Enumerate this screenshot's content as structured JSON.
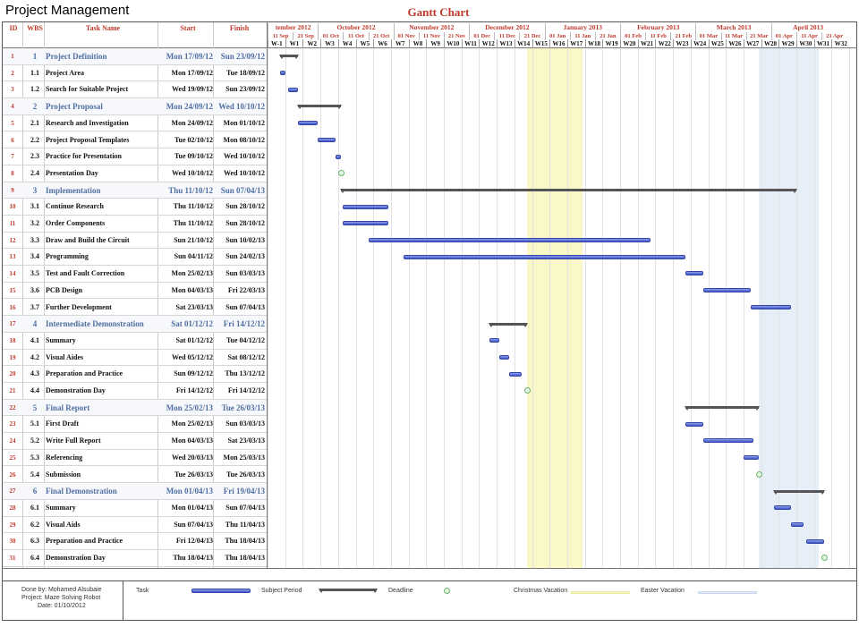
{
  "document": {
    "title": "Project Management",
    "chart_title": "Gantt Chart"
  },
  "columns": {
    "id": "ID",
    "wbs": "WBS",
    "name": "Task Name",
    "start": "Start",
    "finish": "Finish"
  },
  "months": [
    "tember 2012",
    "October 2012",
    "November 2012",
    "December 2012",
    "January 2013",
    "February 2013",
    "March 2013",
    "April 2013"
  ],
  "dates": [
    "11 Sep",
    "21 Sep",
    "01 Oct",
    "11 Oct",
    "21 Oct",
    "01 Nov",
    "11 Nov",
    "21 Nov",
    "01 Dec",
    "11 Dec",
    "21 Dec",
    "01 Jan",
    "11 Jan",
    "21 Jan",
    "01 Feb",
    "11 Feb",
    "21 Feb",
    "01 Mar",
    "11 Mar",
    "21 Mar",
    "01 Apr",
    "11 Apr",
    "21 Apr"
  ],
  "weeks": [
    "W-1",
    "W1",
    "W2",
    "W3",
    "W4",
    "W5",
    "W6",
    "W7",
    "W8",
    "W9",
    "W10",
    "W11",
    "W12",
    "W13",
    "W14",
    "W15",
    "W16",
    "W17",
    "W18",
    "W19",
    "W20",
    "W21",
    "W22",
    "W23",
    "W24",
    "W25",
    "W26",
    "W27",
    "W28",
    "W29",
    "W30",
    "W31",
    "W32"
  ],
  "tasks": [
    {
      "id": "1",
      "wbs": "1",
      "name": "Project Definition",
      "start": "Mon 17/09/12",
      "finish": "Sun 23/09/12",
      "kind": "summary",
      "s": -0.286,
      "e": 0.714
    },
    {
      "id": "2",
      "wbs": "1.1",
      "name": "Project Area",
      "start": "Mon 17/09/12",
      "finish": "Tue 18/09/12",
      "kind": "task",
      "s": -0.286,
      "e": 0.0
    },
    {
      "id": "3",
      "wbs": "1.2",
      "name": "Search for Suitable Project",
      "start": "Wed 19/09/12",
      "finish": "Sun 23/09/12",
      "kind": "task",
      "s": 0.143,
      "e": 0.714
    },
    {
      "id": "4",
      "wbs": "2",
      "name": "Project Proposal",
      "start": "Mon 24/09/12",
      "finish": "Wed 10/10/12",
      "kind": "summary",
      "s": 0.714,
      "e": 3.143
    },
    {
      "id": "5",
      "wbs": "2.1",
      "name": "Research and Investigation",
      "start": "Mon 24/09/12",
      "finish": "Mon 01/10/12",
      "kind": "task",
      "s": 0.714,
      "e": 1.857
    },
    {
      "id": "6",
      "wbs": "2.2",
      "name": "Project Proposal Templates",
      "start": "Tue 02/10/12",
      "finish": "Mon 08/10/12",
      "kind": "task",
      "s": 1.857,
      "e": 2.857
    },
    {
      "id": "7",
      "wbs": "2.3",
      "name": "Practice for Presentation",
      "start": "Tue 09/10/12",
      "finish": "Wed 10/10/12",
      "kind": "task",
      "s": 2.857,
      "e": 3.143
    },
    {
      "id": "8",
      "wbs": "2.4",
      "name": "Presentation Day",
      "start": "Wed 10/10/12",
      "finish": "Wed 10/10/12",
      "kind": "milestone",
      "s": 3.143,
      "e": 3.143
    },
    {
      "id": "9",
      "wbs": "3",
      "name": "Implementation",
      "start": "Thu 11/10/12",
      "finish": "Sun 07/04/13",
      "kind": "summary",
      "s": 3.143,
      "e": 29.0
    },
    {
      "id": "10",
      "wbs": "3.1",
      "name": "Continue Research",
      "start": "Thu 11/10/12",
      "finish": "Sun 28/10/12",
      "kind": "task",
      "s": 3.286,
      "e": 5.857
    },
    {
      "id": "11",
      "wbs": "3.2",
      "name": "Order Components",
      "start": "Thu 11/10/12",
      "finish": "Sun 28/10/12",
      "kind": "task",
      "s": 3.286,
      "e": 5.857
    },
    {
      "id": "12",
      "wbs": "3.3",
      "name": "Draw and Build the Circuit",
      "start": "Sun 21/10/12",
      "finish": "Sun 10/02/13",
      "kind": "task",
      "s": 4.714,
      "e": 20.714
    },
    {
      "id": "13",
      "wbs": "3.4",
      "name": "Programming",
      "start": "Sun 04/11/12",
      "finish": "Sun 24/02/13",
      "kind": "task",
      "s": 6.714,
      "e": 22.714
    },
    {
      "id": "14",
      "wbs": "3.5",
      "name": "Test and Fault Correction",
      "start": "Mon 25/02/13",
      "finish": "Sun 03/03/13",
      "kind": "task",
      "s": 22.714,
      "e": 23.714
    },
    {
      "id": "15",
      "wbs": "3.6",
      "name": "PCB Design",
      "start": "Mon 04/03/13",
      "finish": "Fri 22/03/13",
      "kind": "task",
      "s": 23.714,
      "e": 26.429
    },
    {
      "id": "16",
      "wbs": "3.7",
      "name": "Further Development",
      "start": "Sat 23/03/13",
      "finish": "Sun 07/04/13",
      "kind": "task",
      "s": 26.429,
      "e": 28.714
    },
    {
      "id": "17",
      "wbs": "4",
      "name": "Intermediate Demonstration",
      "start": "Sat 01/12/12",
      "finish": "Fri 14/12/12",
      "kind": "summary",
      "s": 11.571,
      "e": 13.714
    },
    {
      "id": "18",
      "wbs": "4.1",
      "name": "Summary",
      "start": "Sat 01/12/12",
      "finish": "Tue 04/12/12",
      "kind": "task",
      "s": 11.571,
      "e": 12.143
    },
    {
      "id": "19",
      "wbs": "4.2",
      "name": "Visual Aides",
      "start": "Wed 05/12/12",
      "finish": "Sat 08/12/12",
      "kind": "task",
      "s": 12.143,
      "e": 12.714
    },
    {
      "id": "20",
      "wbs": "4.3",
      "name": "Preparation and Practice",
      "start": "Sun 09/12/12",
      "finish": "Thu 13/12/12",
      "kind": "task",
      "s": 12.714,
      "e": 13.429
    },
    {
      "id": "21",
      "wbs": "4.4",
      "name": "Demonstration Day",
      "start": "Fri 14/12/12",
      "finish": "Fri 14/12/12",
      "kind": "milestone",
      "s": 13.714,
      "e": 13.714
    },
    {
      "id": "22",
      "wbs": "5",
      "name": "Final Report",
      "start": "Mon 25/02/13",
      "finish": "Tue 26/03/13",
      "kind": "summary",
      "s": 22.714,
      "e": 26.857
    },
    {
      "id": "23",
      "wbs": "5.1",
      "name": "First Draft",
      "start": "Mon 25/02/13",
      "finish": "Sun 03/03/13",
      "kind": "task",
      "s": 22.714,
      "e": 23.714
    },
    {
      "id": "24",
      "wbs": "5.2",
      "name": "Write Full Report",
      "start": "Mon 04/03/13",
      "finish": "Sat 23/03/13",
      "kind": "task",
      "s": 23.714,
      "e": 26.571
    },
    {
      "id": "25",
      "wbs": "5.3",
      "name": "Referencing",
      "start": "Wed 20/03/13",
      "finish": "Mon 25/03/13",
      "kind": "task",
      "s": 26.0,
      "e": 26.857
    },
    {
      "id": "26",
      "wbs": "5.4",
      "name": "Submission",
      "start": "Tue 26/03/13",
      "finish": "Tue 26/03/13",
      "kind": "milestone",
      "s": 26.857,
      "e": 26.857
    },
    {
      "id": "27",
      "wbs": "6",
      "name": "Final Demonstration",
      "start": "Mon 01/04/13",
      "finish": "Fri 19/04/13",
      "kind": "summary",
      "s": 27.714,
      "e": 30.571
    },
    {
      "id": "28",
      "wbs": "6.1",
      "name": "Summary",
      "start": "Mon 01/04/13",
      "finish": "Sun 07/04/13",
      "kind": "task",
      "s": 27.714,
      "e": 28.714
    },
    {
      "id": "29",
      "wbs": "6.2",
      "name": "Visual Aids",
      "start": "Sun 07/04/13",
      "finish": "Thu 11/04/13",
      "kind": "task",
      "s": 28.714,
      "e": 29.429
    },
    {
      "id": "30",
      "wbs": "6.3",
      "name": "Preparation and Practice",
      "start": "Fri 12/04/13",
      "finish": "Thu 18/04/13",
      "kind": "task",
      "s": 29.571,
      "e": 30.571
    },
    {
      "id": "31",
      "wbs": "6.4",
      "name": "Demonstration Day",
      "start": "Thu 18/04/13",
      "finish": "Thu 18/04/13",
      "kind": "milestone",
      "s": 30.571,
      "e": 30.571
    }
  ],
  "shading": [
    {
      "label": "Christmas Vacation",
      "s": 13.714,
      "e": 16.857,
      "color": "#fbf8c8"
    },
    {
      "label": "Easter Vacation",
      "s": 26.857,
      "e": 30.286,
      "color": "#e6eef8"
    }
  ],
  "legend": {
    "done_by": "Done by: Mohamed Alsubaie",
    "project": "Project: Maze Solving Robot",
    "date": "Date: 01/10/2012",
    "task": "Task",
    "subject_period": "Subject Period",
    "deadline": "Deadline",
    "christmas": "Christmas Vacation",
    "easter": "Easter Vacation"
  },
  "colors": {
    "accent_red": "#c0392b",
    "summary_blue": "#4f6fa3",
    "bar": "#4a5fcf",
    "christmas": "#fbf8c8",
    "easter": "#e6eef8"
  }
}
